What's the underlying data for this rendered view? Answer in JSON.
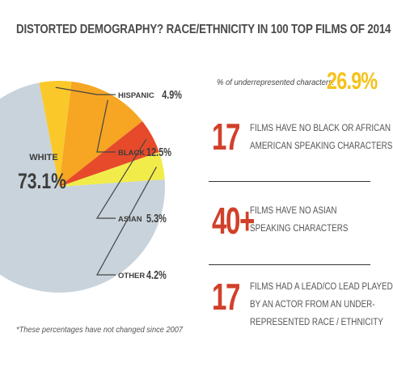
{
  "title": "DISTORTED DEMOGRAPHY? RACE/ETHNICITY IN 100 TOP FILMS OF 2014",
  "colors": {
    "white_slice": "#c9d3db",
    "hispanic_slice": "#fbc82a",
    "black_slice": "#f6a623",
    "asian_slice": "#e64a2a",
    "other_slice": "#f1ec4a",
    "accent_yellow": "#f5c21b",
    "accent_red": "#d1402a"
  },
  "chart_data": {
    "type": "pie",
    "categories": [
      "WHITE",
      "HISPANIC",
      "BLACK",
      "ASIAN",
      "OTHER"
    ],
    "values": [
      73.1,
      4.9,
      12.5,
      5.3,
      4.2
    ],
    "value_labels": [
      "73.1%",
      "4.9%",
      "12.5%",
      "5.3%",
      "4.2%"
    ],
    "title": "DISTORTED DEMOGRAPHY? RACE/ETHNICITY IN 100 TOP FILMS OF 2014",
    "footnote": "*These percentages have not changed since 2007"
  },
  "stats": {
    "underrepresented_label": "% of underrepresented characters:",
    "underrepresented_value": "26.9%",
    "items": [
      {
        "number": "17",
        "line1": "FILMS HAVE NO BLACK OR AFRICAN",
        "line2": "AMERICAN SPEAKING CHARACTERS",
        "line3": ""
      },
      {
        "number": "40+",
        "line1": "FILMS HAVE NO ASIAN",
        "line2": "SPEAKING CHARACTERS",
        "line3": ""
      },
      {
        "number": "17",
        "line1": "FILMS HAD A LEAD/CO LEAD PLAYED",
        "line2": "BY AN ACTOR FROM AN UNDER-",
        "line3": "REPRESENTED RACE / ETHNICITY"
      }
    ]
  }
}
